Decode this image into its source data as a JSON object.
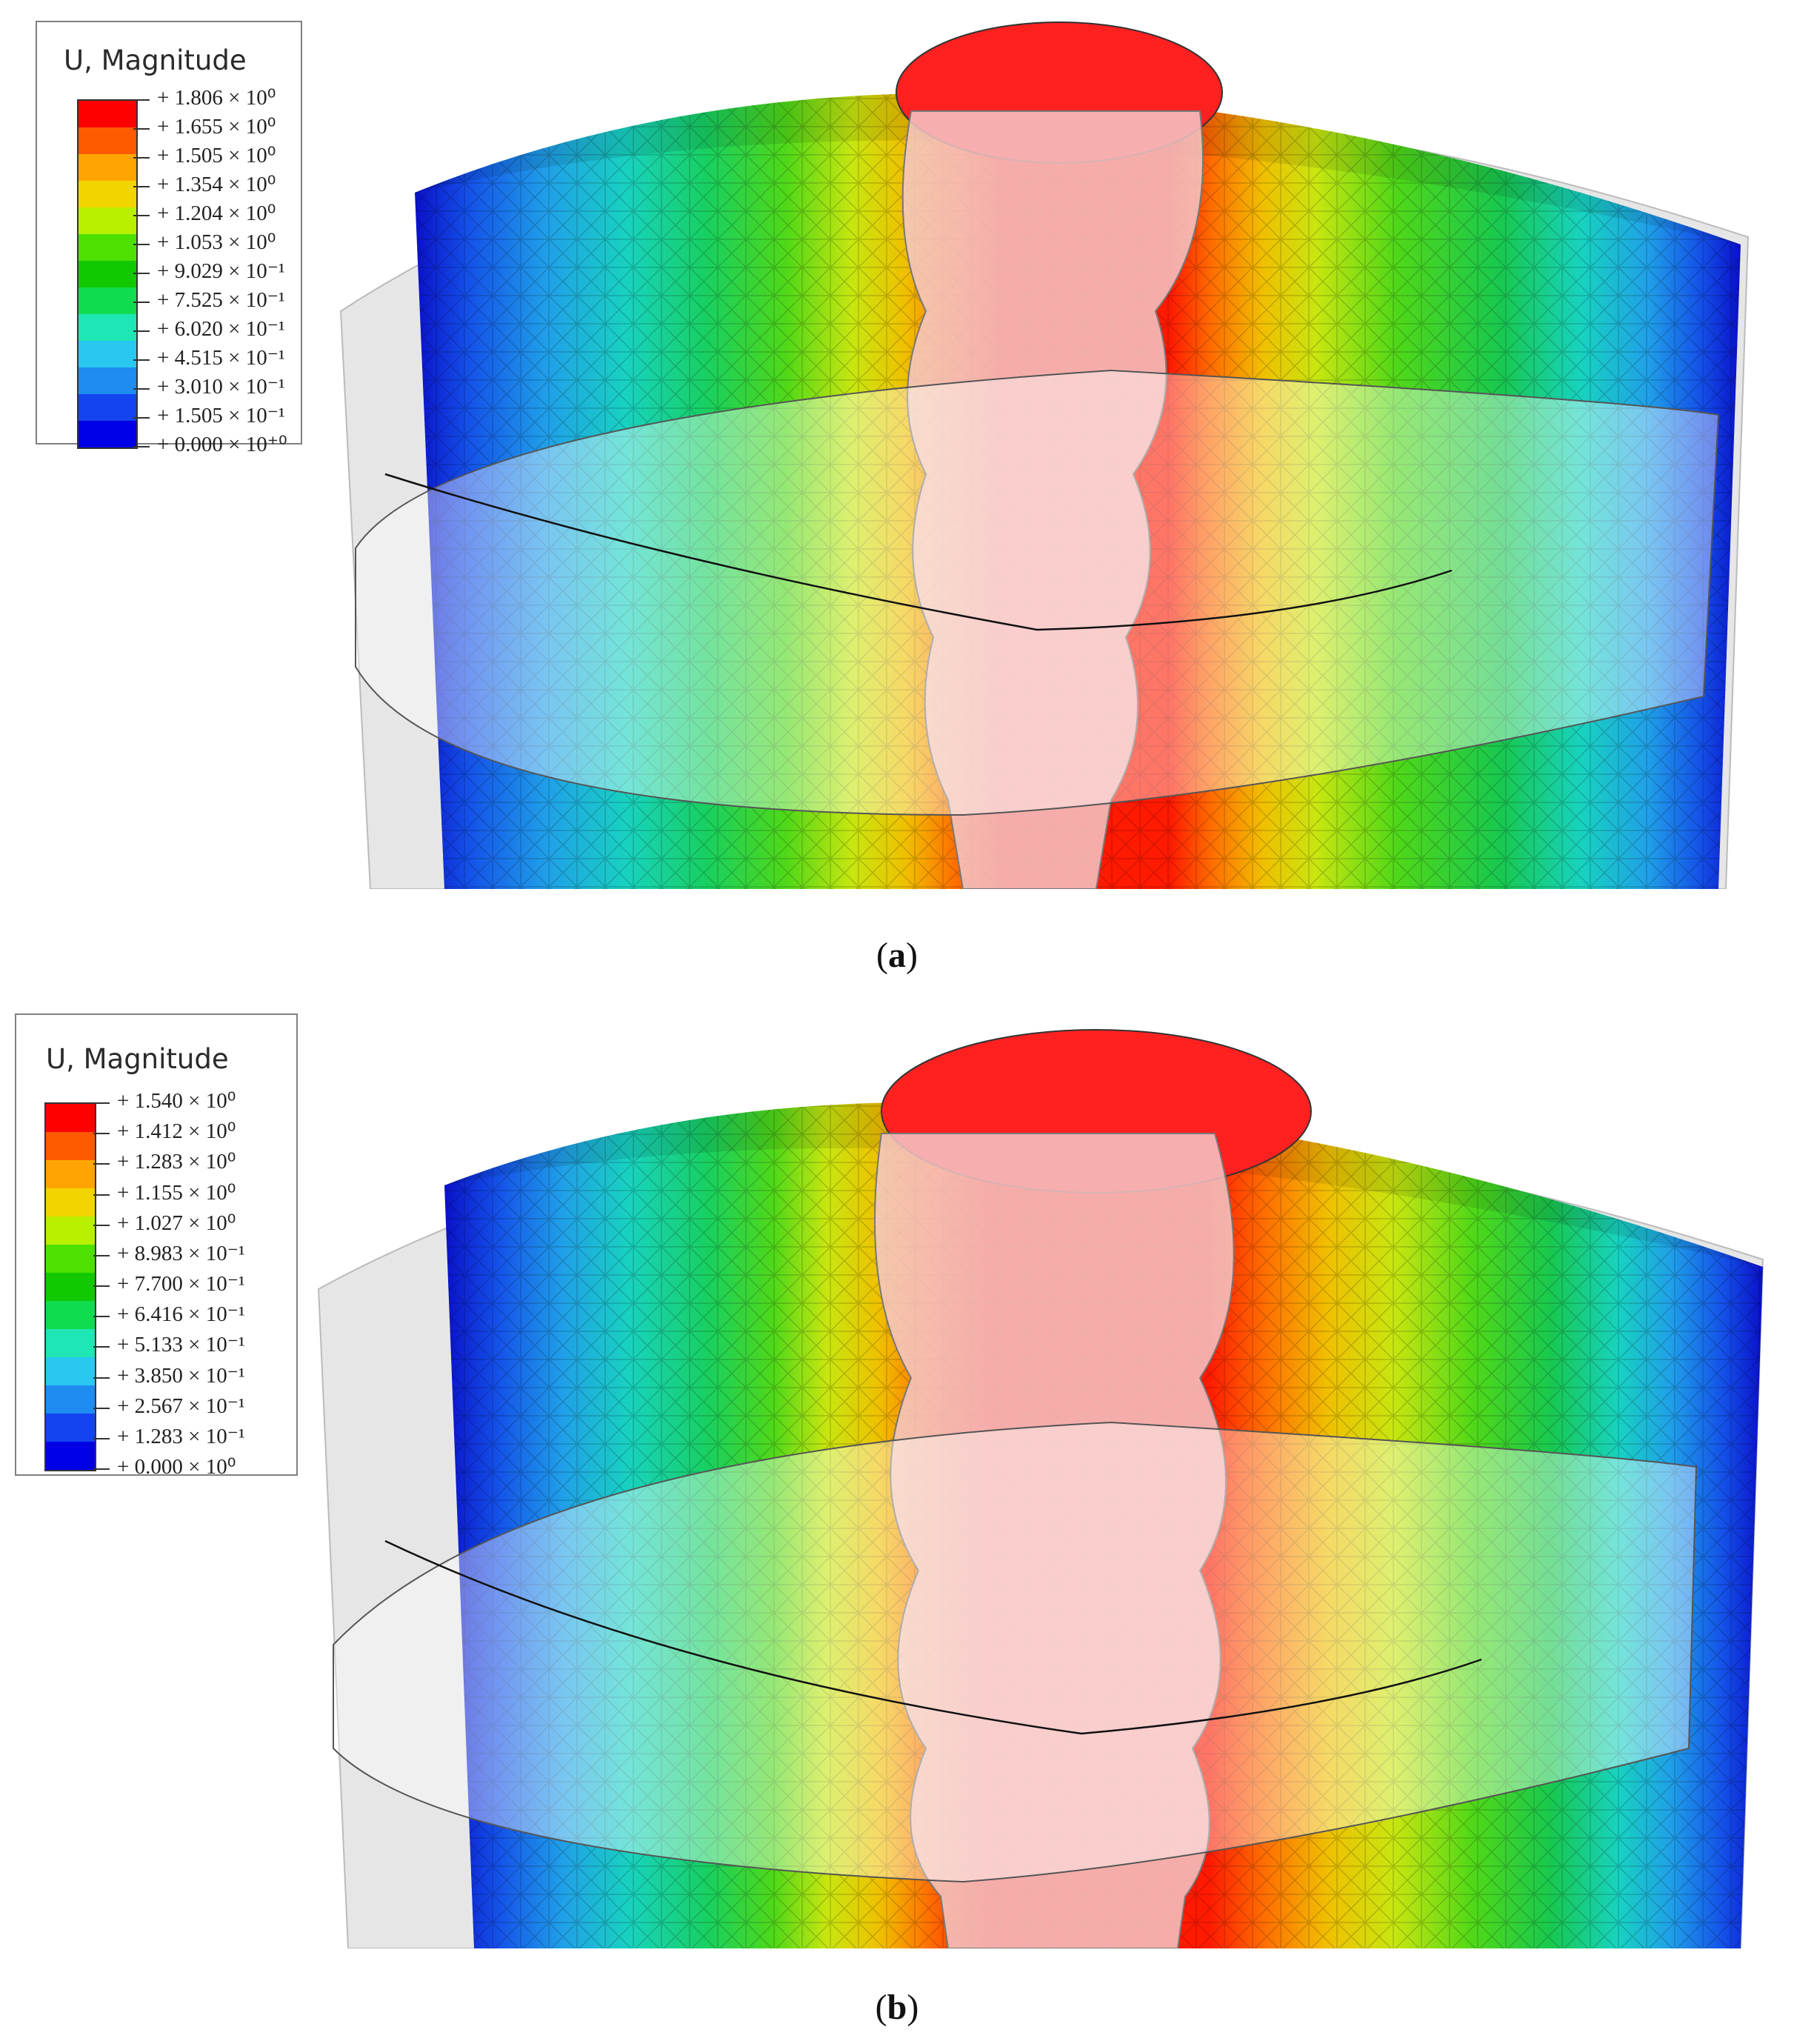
{
  "panels": [
    {
      "id": "a",
      "caption_letter": "a",
      "legend": {
        "title": "U, Magnitude",
        "colors": [
          "#ff0000",
          "#ff5a00",
          "#ffa400",
          "#f2d500",
          "#b8f000",
          "#4ee000",
          "#12c800",
          "#10dc50",
          "#1ee6b4",
          "#28c8f0",
          "#1e8cf0",
          "#1444f0",
          "#0000e6"
        ],
        "labels": [
          "+ 1.806 × 10⁰",
          "+ 1.655 × 10⁰",
          "+ 1.505 × 10⁰",
          "+ 1.354 × 10⁰",
          "+ 1.204 × 10⁰",
          "+ 1.053 × 10⁰",
          "+ 9.029 × 10⁻¹",
          "+ 7.525 × 10⁻¹",
          "+ 6.020 × 10⁻¹",
          "+ 4.515 × 10⁻¹",
          "+ 3.010 × 10⁻¹",
          "+ 1.505 × 10⁻¹",
          "+ 0.000 × 10⁺⁰"
        ]
      }
    },
    {
      "id": "b",
      "caption_letter": "b",
      "legend": {
        "title": "U, Magnitude",
        "colors": [
          "#ff0000",
          "#ff5a00",
          "#ffa400",
          "#f2d500",
          "#b8f000",
          "#4ee000",
          "#12c800",
          "#10dc50",
          "#1ee6b4",
          "#28c8f0",
          "#1e8cf0",
          "#1444f0",
          "#0000e6"
        ],
        "labels": [
          "+ 1.540 × 10⁰",
          "+ 1.412 × 10⁰",
          "+ 1.283 × 10⁰",
          "+ 1.155 × 10⁰",
          "+ 1.027 × 10⁰",
          "+ 8.983 × 10⁻¹",
          "+ 7.700 × 10⁻¹",
          "+ 6.416 × 10⁻¹",
          "+ 5.133 × 10⁻¹",
          "+ 3.850 × 10⁻¹",
          "+ 2.567 × 10⁻¹",
          "+ 1.283 × 10⁻¹",
          "+ 0.000 × 10⁰"
        ]
      }
    }
  ]
}
